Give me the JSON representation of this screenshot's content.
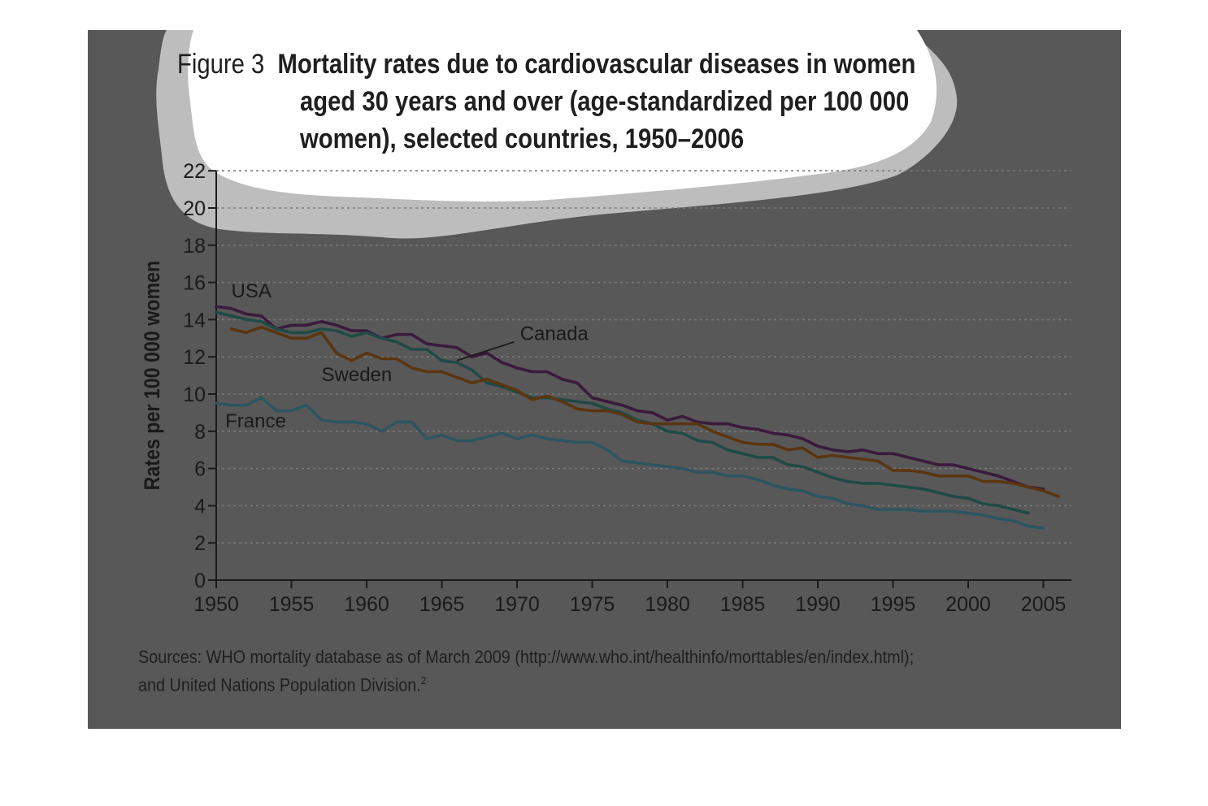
{
  "figure": {
    "prefix": "Figure 3",
    "title_lines": [
      "Mortality rates due to cardiovascular diseases in women",
      "aged 30 years and over (age-standardized per 100 000",
      "women), selected countries, 1950–2006"
    ]
  },
  "sources": {
    "line1": "Sources: WHO mortality database as of March 2009 (http://www.who.int/healthinfo/morttables/en/index.html);",
    "line2": "and United Nations Population Division.",
    "footnote_mark": "2"
  },
  "chart_data": {
    "type": "line",
    "title": "Mortality rates due to cardiovascular diseases in women aged 30 years and over (age-standardized per 100 000 women), selected countries, 1950–2006",
    "xlabel": "",
    "ylabel": "Rates per 100 000 women",
    "xlim": [
      1950,
      2007
    ],
    "ylim": [
      0,
      22
    ],
    "xticks": [
      1950,
      1955,
      1960,
      1965,
      1970,
      1975,
      1980,
      1985,
      1990,
      1995,
      2000,
      2005
    ],
    "yticks": [
      0,
      2,
      4,
      6,
      8,
      10,
      12,
      14,
      16,
      18,
      20,
      22
    ],
    "grid": "horizontal dotted",
    "colors": {
      "background": "#585858",
      "axis": "#1a1a1a",
      "grid": "#7a7a7a"
    },
    "series": [
      {
        "name": "USA",
        "color": "#3b1a3c",
        "x": [
          1950,
          1951,
          1952,
          1953,
          1954,
          1955,
          1956,
          1957,
          1958,
          1959,
          1960,
          1961,
          1962,
          1963,
          1964,
          1965,
          1966,
          1967,
          1968,
          1969,
          1970,
          1971,
          1972,
          1973,
          1974,
          1975,
          1976,
          1977,
          1978,
          1979,
          1980,
          1981,
          1982,
          1983,
          1984,
          1985,
          1986,
          1987,
          1988,
          1989,
          1990,
          1991,
          1992,
          1993,
          1994,
          1995,
          1996,
          1997,
          1998,
          1999,
          2000,
          2001,
          2002,
          2003,
          2004,
          2005
        ],
        "y": [
          14.7,
          14.6,
          14.3,
          14.2,
          13.5,
          13.7,
          13.7,
          13.9,
          13.7,
          13.4,
          13.4,
          13.0,
          13.2,
          13.2,
          12.7,
          12.6,
          12.5,
          12.0,
          12.2,
          11.7,
          11.4,
          11.2,
          11.2,
          10.8,
          10.6,
          9.8,
          9.6,
          9.4,
          9.1,
          9.0,
          8.6,
          8.8,
          8.5,
          8.4,
          8.4,
          8.2,
          8.1,
          7.9,
          7.8,
          7.6,
          7.2,
          7.0,
          6.9,
          7.0,
          6.8,
          6.8,
          6.6,
          6.4,
          6.2,
          6.2,
          6.0,
          5.8,
          5.6,
          5.3,
          5.0,
          4.9
        ]
      },
      {
        "name": "Canada",
        "color": "#1f4a45",
        "x": [
          1950,
          1951,
          1952,
          1953,
          1954,
          1955,
          1956,
          1957,
          1958,
          1959,
          1960,
          1961,
          1962,
          1963,
          1964,
          1965,
          1966,
          1967,
          1968,
          1969,
          1970,
          1971,
          1972,
          1973,
          1974,
          1975,
          1976,
          1977,
          1978,
          1979,
          1980,
          1981,
          1982,
          1983,
          1984,
          1985,
          1986,
          1987,
          1988,
          1989,
          1990,
          1991,
          1992,
          1993,
          1994,
          1995,
          1996,
          1997,
          1998,
          1999,
          2000,
          2001,
          2002,
          2003,
          2004
        ],
        "y": [
          14.4,
          14.2,
          14.0,
          13.9,
          13.5,
          13.3,
          13.3,
          13.5,
          13.4,
          13.1,
          13.3,
          13.0,
          12.8,
          12.4,
          12.4,
          11.8,
          11.7,
          11.3,
          10.6,
          10.4,
          10.1,
          9.8,
          9.8,
          9.7,
          9.6,
          9.5,
          9.2,
          9.0,
          8.6,
          8.4,
          8.0,
          7.9,
          7.5,
          7.4,
          7.0,
          6.8,
          6.6,
          6.6,
          6.2,
          6.1,
          5.8,
          5.5,
          5.3,
          5.2,
          5.2,
          5.1,
          5.0,
          4.9,
          4.7,
          4.5,
          4.4,
          4.1,
          4.0,
          3.8,
          3.6
        ]
      },
      {
        "name": "Sweden",
        "color": "#5a3510",
        "x": [
          1951,
          1952,
          1953,
          1954,
          1955,
          1956,
          1957,
          1958,
          1959,
          1960,
          1961,
          1962,
          1963,
          1964,
          1965,
          1966,
          1967,
          1968,
          1969,
          1970,
          1971,
          1972,
          1973,
          1974,
          1975,
          1976,
          1977,
          1978,
          1979,
          1980,
          1981,
          1982,
          1983,
          1984,
          1985,
          1986,
          1987,
          1988,
          1989,
          1990,
          1991,
          1992,
          1993,
          1994,
          1995,
          1996,
          1997,
          1998,
          1999,
          2000,
          2001,
          2002,
          2003,
          2004,
          2005,
          2006
        ],
        "y": [
          13.5,
          13.3,
          13.6,
          13.3,
          13.0,
          13.0,
          13.3,
          12.2,
          11.8,
          12.2,
          11.9,
          11.9,
          11.4,
          11.2,
          11.2,
          10.9,
          10.6,
          10.8,
          10.5,
          10.2,
          9.7,
          9.9,
          9.6,
          9.2,
          9.1,
          9.1,
          8.9,
          8.5,
          8.4,
          8.4,
          8.4,
          8.4,
          8.0,
          7.7,
          7.4,
          7.3,
          7.3,
          7.0,
          7.1,
          6.6,
          6.7,
          6.6,
          6.5,
          6.4,
          5.9,
          5.9,
          5.8,
          5.6,
          5.6,
          5.6,
          5.3,
          5.3,
          5.2,
          5.0,
          4.8,
          4.5
        ]
      },
      {
        "name": "France",
        "color": "#2c5560",
        "x": [
          1950,
          1951,
          1952,
          1953,
          1954,
          1955,
          1956,
          1957,
          1958,
          1959,
          1960,
          1961,
          1962,
          1963,
          1964,
          1965,
          1966,
          1967,
          1968,
          1969,
          1970,
          1971,
          1972,
          1973,
          1974,
          1975,
          1976,
          1977,
          1978,
          1979,
          1980,
          1981,
          1982,
          1983,
          1984,
          1985,
          1986,
          1987,
          1988,
          1989,
          1990,
          1991,
          1992,
          1993,
          1994,
          1995,
          1996,
          1997,
          1998,
          1999,
          2000,
          2001,
          2002,
          2003,
          2004,
          2005
        ],
        "y": [
          9.5,
          9.4,
          9.4,
          9.8,
          9.1,
          9.1,
          9.4,
          8.6,
          8.5,
          8.5,
          8.4,
          8.0,
          8.5,
          8.5,
          7.6,
          7.8,
          7.5,
          7.5,
          7.7,
          7.9,
          7.6,
          7.8,
          7.6,
          7.5,
          7.4,
          7.4,
          7.0,
          6.4,
          6.3,
          6.2,
          6.1,
          6.0,
          5.8,
          5.8,
          5.6,
          5.6,
          5.4,
          5.1,
          4.9,
          4.8,
          4.5,
          4.4,
          4.1,
          4.0,
          3.8,
          3.8,
          3.8,
          3.7,
          3.7,
          3.7,
          3.6,
          3.5,
          3.3,
          3.2,
          2.9,
          2.8
        ]
      }
    ],
    "annotations": [
      {
        "text": "USA",
        "series": "USA"
      },
      {
        "text": "Canada",
        "series": "Canada"
      },
      {
        "text": "Sweden",
        "series": "Sweden"
      },
      {
        "text": "France",
        "series": "France"
      }
    ]
  }
}
